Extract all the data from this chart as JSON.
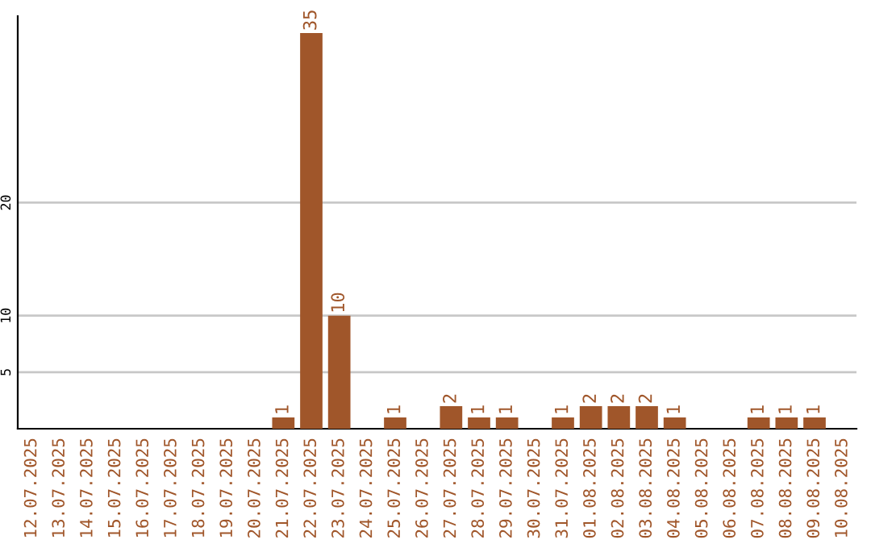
{
  "chart_data": {
    "type": "bar",
    "categories": [
      "12.07.2025",
      "13.07.2025",
      "14.07.2025",
      "15.07.2025",
      "16.07.2025",
      "17.07.2025",
      "18.07.2025",
      "19.07.2025",
      "20.07.2025",
      "21.07.2025",
      "22.07.2025",
      "23.07.2025",
      "24.07.2025",
      "25.07.2025",
      "26.07.2025",
      "27.07.2025",
      "28.07.2025",
      "29.07.2025",
      "30.07.2025",
      "31.07.2025",
      "01.08.2025",
      "02.08.2025",
      "03.08.2025",
      "04.08.2025",
      "05.08.2025",
      "06.08.2025",
      "07.08.2025",
      "08.08.2025",
      "09.08.2025",
      "10.08.2025"
    ],
    "values": [
      0,
      0,
      0,
      0,
      0,
      0,
      0,
      0,
      0,
      1,
      35,
      10,
      0,
      1,
      0,
      2,
      1,
      1,
      0,
      1,
      2,
      2,
      2,
      1,
      0,
      0,
      1,
      1,
      1,
      0
    ],
    "value_labels": [
      null,
      null,
      null,
      null,
      null,
      null,
      null,
      null,
      null,
      "1",
      "35",
      "10",
      null,
      "1",
      null,
      "2",
      "1",
      "1",
      null,
      "1",
      "2",
      "2",
      "2",
      "1",
      null,
      null,
      "1",
      "1",
      "1",
      null
    ],
    "color": "#a0562a",
    "ylim": [
      0,
      36.5
    ],
    "yticks": [
      5,
      10,
      20
    ],
    "grid": "y",
    "legend": false
  }
}
